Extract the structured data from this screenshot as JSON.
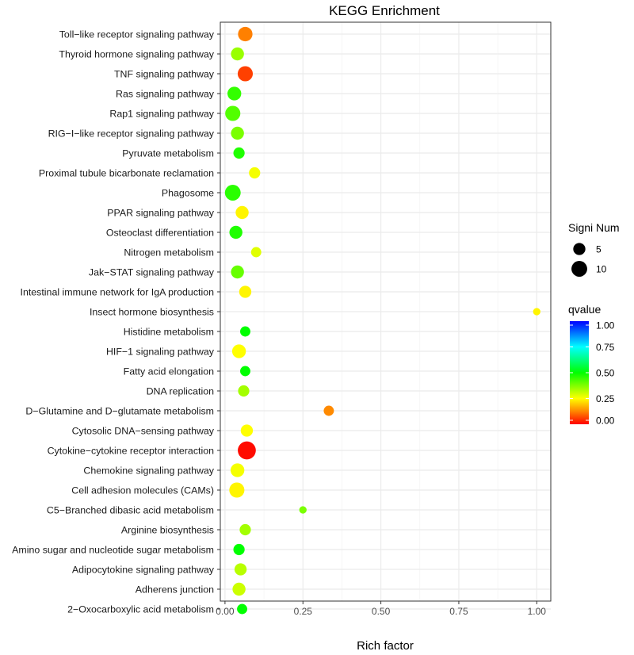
{
  "chart_data": {
    "type": "scatter",
    "title": "KEGG Enrichment",
    "xlabel": "Rich factor",
    "ylabel": "",
    "xlim": [
      -0.015,
      1.045
    ],
    "xticks": [
      0.0,
      0.25,
      0.5,
      0.75,
      1.0
    ],
    "xtick_labels": [
      "0.00",
      "0.25",
      "0.50",
      "0.75",
      "1.00"
    ],
    "grid": true,
    "legend": {
      "placement": "right",
      "size_title": "Signi Num",
      "size_entries": [
        {
          "label": "5",
          "value": 5
        },
        {
          "label": "10",
          "value": 10
        }
      ],
      "color_title": "qvalue",
      "color_ticks": [
        "1.00",
        "0.75",
        "0.50",
        "0.25",
        "0.00"
      ],
      "color_tick_values": [
        1.0,
        0.75,
        0.5,
        0.25,
        0.0
      ],
      "color_low": "#ff0000",
      "color_high": "#0000ff"
    },
    "categories": [
      "Toll−like receptor signaling pathway",
      "Thyroid hormone signaling pathway",
      "TNF signaling pathway",
      "Ras signaling pathway",
      "Rap1 signaling pathway",
      "RIG−I−like receptor signaling pathway",
      "Pyruvate metabolism",
      "Proximal tubule bicarbonate reclamation",
      "Phagosome",
      "PPAR signaling pathway",
      "Osteoclast differentiation",
      "Nitrogen metabolism",
      "Jak−STAT signaling pathway",
      "Intestinal immune network for IgA production",
      "Insect hormone biosynthesis",
      "Histidine metabolism",
      "HIF−1 signaling pathway",
      "Fatty acid elongation",
      "DNA replication",
      "D−Glutamine and D−glutamate metabolism",
      "Cytosolic DNA−sensing pathway",
      "Cytokine−cytokine receptor interaction",
      "Chemokine signaling pathway",
      "Cell adhesion molecules (CAMs)",
      "C5−Branched dibasic acid metabolism",
      "Arginine biosynthesis",
      "Amino sugar and nucleotide sugar metabolism",
      "Adipocytokine signaling pathway",
      "Adherens junction",
      "2−Oxocarboxylic acid metabolism"
    ],
    "rich_factor": [
      0.065,
      0.04,
      0.065,
      0.03,
      0.025,
      0.04,
      0.045,
      0.095,
      0.025,
      0.055,
      0.035,
      0.1,
      0.04,
      0.065,
      1.0,
      0.065,
      0.045,
      0.065,
      0.06,
      0.333,
      0.07,
      0.07,
      0.04,
      0.038,
      0.25,
      0.065,
      0.045,
      0.05,
      0.045,
      0.055
    ],
    "signi_num": [
      8,
      6,
      9,
      7,
      9,
      6,
      4,
      4,
      10,
      6,
      6,
      3,
      6,
      5,
      1,
      3,
      7,
      3,
      4,
      3,
      5,
      14,
      7,
      9,
      1,
      4,
      4,
      5,
      6,
      3
    ],
    "qvalue": [
      0.12,
      0.35,
      0.06,
      0.45,
      0.42,
      0.38,
      0.47,
      0.26,
      0.46,
      0.24,
      0.47,
      0.28,
      0.4,
      0.24,
      0.24,
      0.5,
      0.25,
      0.5,
      0.34,
      0.13,
      0.25,
      0.01,
      0.26,
      0.24,
      0.38,
      0.34,
      0.5,
      0.32,
      0.3,
      0.5
    ]
  }
}
